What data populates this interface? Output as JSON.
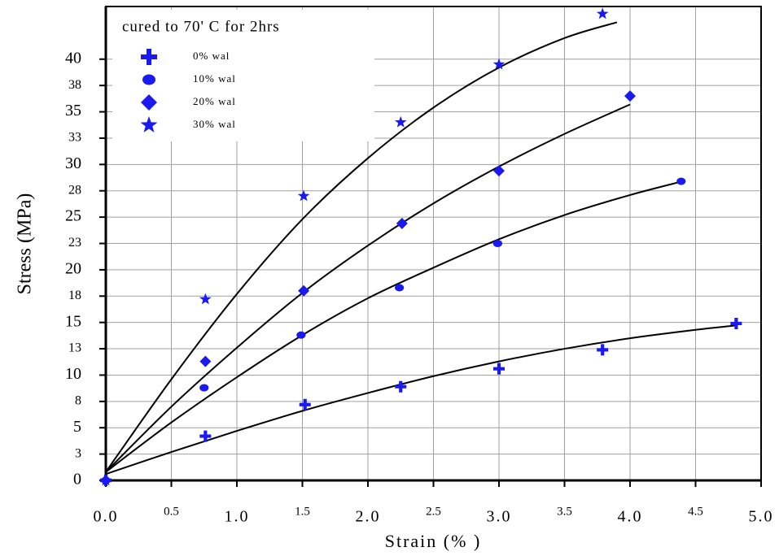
{
  "chart_data": {
    "type": "scatter",
    "x_label": "Strain (% )",
    "y_label": "Stress (MPa)",
    "legend_title": "cured to 70' C for 2hrs",
    "xlim": [
      0,
      5
    ],
    "ylim": [
      0,
      45
    ],
    "xticks": [
      {
        "value": 0,
        "label": "0.0"
      },
      0.5,
      {
        "value": 1,
        "label": "1.0"
      },
      1.5,
      {
        "value": 2,
        "label": "2.0"
      },
      2.5,
      {
        "value": 3,
        "label": "3.0"
      },
      3.5,
      {
        "value": 4,
        "label": "4.0"
      },
      4.5,
      {
        "value": 5,
        "label": "5.0"
      }
    ],
    "yticks": [
      0,
      {
        "value": 2.5,
        "label": "3"
      },
      5,
      {
        "value": 7.5,
        "label": "8"
      },
      10,
      {
        "value": 12.5,
        "label": "13"
      },
      15,
      {
        "value": 17.5,
        "label": "18"
      },
      20,
      {
        "value": 22.5,
        "label": "23"
      },
      25,
      {
        "value": 27.5,
        "label": "28"
      },
      30,
      {
        "value": 32.5,
        "label": "33"
      },
      35,
      {
        "value": 37.5,
        "label": "38"
      },
      40
    ],
    "grid": true,
    "series": [
      {
        "name": "0% wal",
        "marker": "plus",
        "color": "#1a1aee",
        "x": [
          0,
          0.76,
          1.52,
          2.25,
          3.0,
          3.79,
          4.81
        ],
        "values": [
          0,
          4.2,
          7.2,
          8.9,
          10.6,
          12.4,
          14.9
        ]
      },
      {
        "name": "10% wal",
        "marker": "circle",
        "color": "#1a1aee",
        "x": [
          0,
          0.75,
          1.49,
          2.24,
          2.99,
          4.39
        ],
        "values": [
          0,
          8.8,
          13.8,
          18.3,
          22.5,
          28.4
        ]
      },
      {
        "name": "20% wal",
        "marker": "diamond",
        "color": "#1a1aee",
        "x": [
          0,
          0.76,
          1.51,
          2.26,
          3.0,
          4.0
        ],
        "values": [
          0,
          11.3,
          18.0,
          24.4,
          29.4,
          36.5
        ]
      },
      {
        "name": "30% wal",
        "marker": "star",
        "color": "#1a1aee",
        "x": [
          0,
          0.76,
          1.51,
          2.25,
          3.0,
          3.79
        ],
        "values": [
          0,
          17.2,
          27.0,
          34.0,
          39.5,
          44.3
        ]
      }
    ],
    "fits": [
      {
        "x": [
          0,
          0.5,
          1,
          1.5,
          2,
          2.5,
          3,
          3.5,
          4,
          4.5,
          4.8
        ],
        "values": [
          0.6,
          2.7,
          4.7,
          6.6,
          8.3,
          9.9,
          11.3,
          12.5,
          13.5,
          14.3,
          14.7
        ]
      },
      {
        "x": [
          0,
          0.5,
          1,
          1.5,
          2,
          2.5,
          3,
          3.5,
          4,
          4.4
        ],
        "values": [
          0.8,
          5.5,
          9.8,
          13.8,
          17.3,
          20.2,
          22.9,
          25.2,
          27.1,
          28.4
        ]
      },
      {
        "x": [
          0,
          0.5,
          1,
          1.5,
          2,
          2.5,
          3,
          3.5,
          4
        ],
        "values": [
          0.8,
          7.0,
          12.6,
          17.8,
          22.3,
          26.3,
          29.8,
          32.9,
          35.7
        ]
      },
      {
        "x": [
          0,
          0.5,
          1,
          1.5,
          2,
          2.5,
          3,
          3.5,
          3.9
        ],
        "values": [
          0.8,
          9.6,
          17.7,
          24.8,
          30.6,
          35.4,
          39.2,
          42.0,
          43.5
        ]
      }
    ],
    "fit_color": "#000000"
  }
}
